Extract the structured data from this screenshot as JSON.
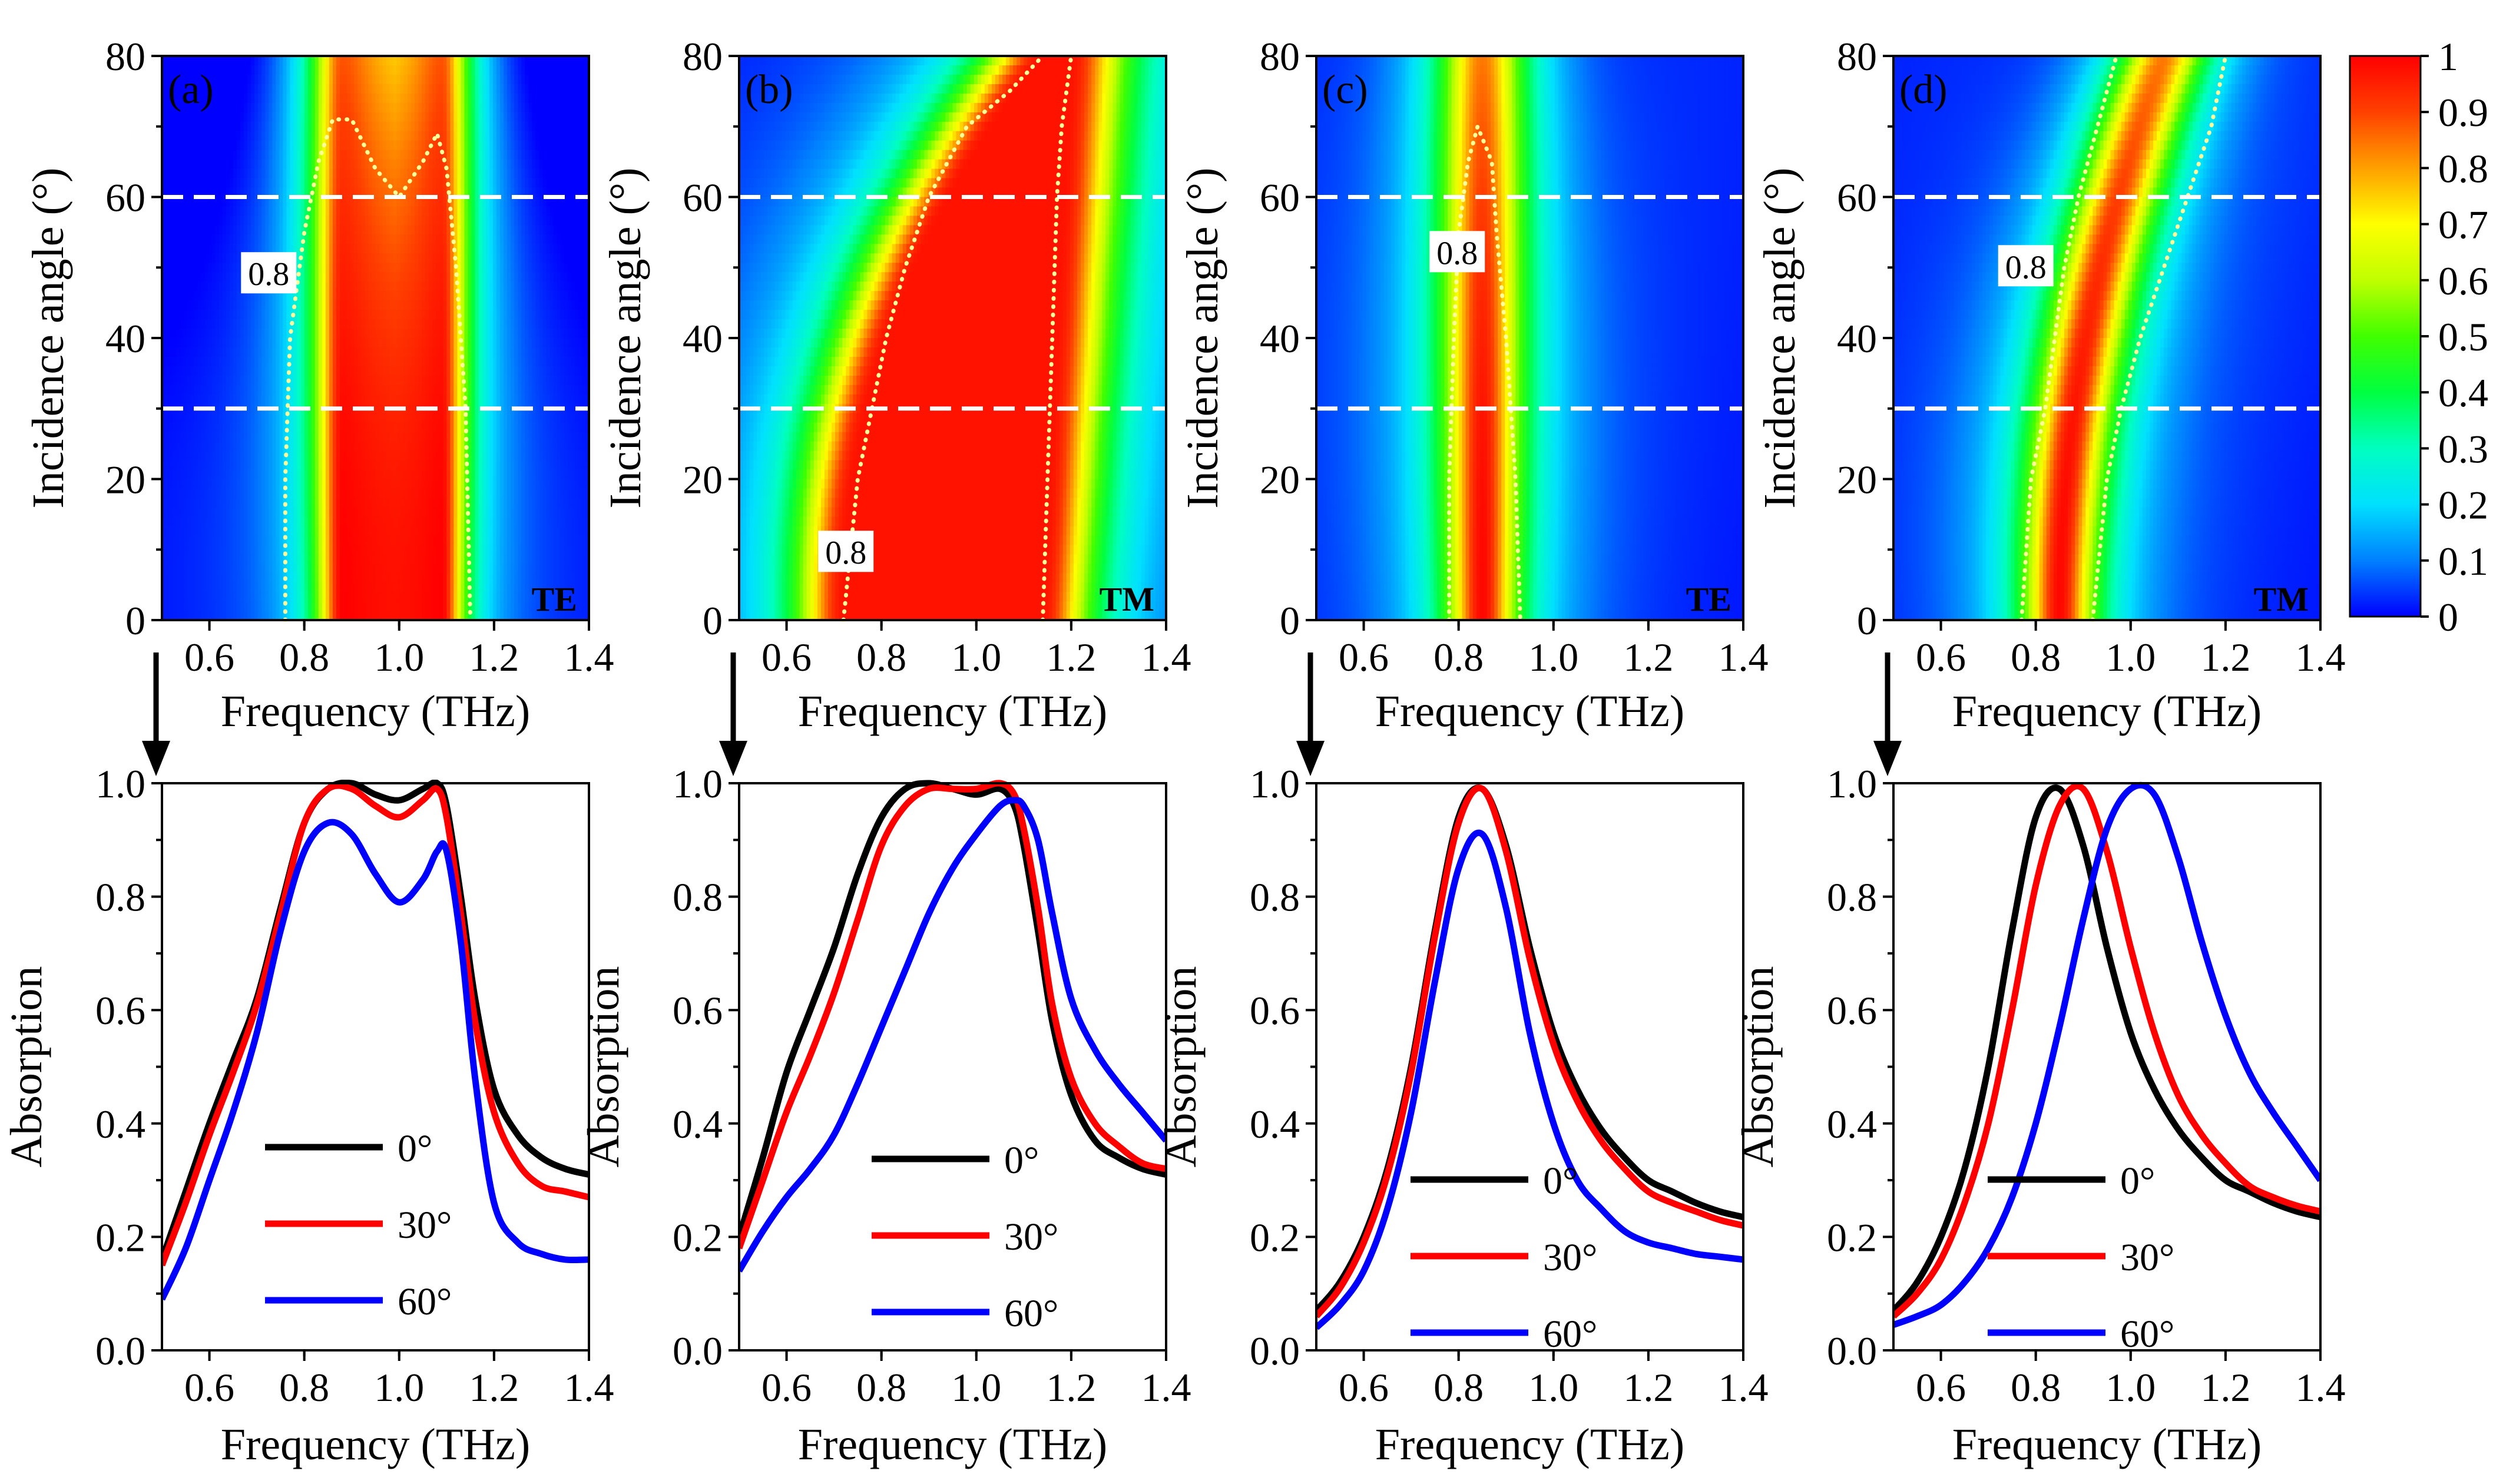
{
  "colorbar": {
    "ticks": [
      "0",
      "0.1",
      "0.2",
      "0.3",
      "0.4",
      "0.5",
      "0.6",
      "0.7",
      "0.8",
      "0.9",
      "1"
    ],
    "stops": [
      "#0000ff",
      "#0080ff",
      "#00e0ff",
      "#00ffc0",
      "#00ff40",
      "#40ff00",
      "#c0ff00",
      "#ffff00",
      "#ffa000",
      "#ff4000",
      "#ff0000"
    ]
  },
  "colors": {
    "0deg": "#000000",
    "30deg": "#ff0000",
    "60deg": "#0000ff",
    "contour": "#ffff9a",
    "guide": "#ffffff"
  },
  "chart_data": [
    {
      "type": "heatmap",
      "panel": "(a)",
      "polarization": "TE",
      "xlabel": "Frequency (THz)",
      "ylabel": "Incidence angle (°)",
      "xlim": [
        0.5,
        1.4
      ],
      "ylim": [
        0,
        80
      ],
      "xticks": [
        "0.6",
        "0.8",
        "1.0",
        "1.2",
        "1.4"
      ],
      "yticks": [
        "0",
        "20",
        "40",
        "60",
        "80"
      ],
      "contour_label": "0.8",
      "guide_angles": [
        30,
        60
      ],
      "contour_left": [
        [
          0,
          0.76
        ],
        [
          20,
          0.76
        ],
        [
          40,
          0.77
        ],
        [
          55,
          0.8
        ],
        [
          65,
          0.83
        ],
        [
          71,
          0.86
        ],
        [
          71,
          0.9
        ],
        [
          64,
          0.95
        ],
        [
          60,
          1.0
        ],
        [
          65,
          1.05
        ],
        [
          69,
          1.08
        ],
        [
          64,
          1.1
        ],
        [
          50,
          1.12
        ],
        [
          30,
          1.14
        ],
        [
          0,
          1.15
        ]
      ],
      "model": "band",
      "peaks": [
        {
          "f0": 0.88,
          "w0": 0.055,
          "shift": 0
        },
        {
          "f0": 1.09,
          "w0": 0.05,
          "shift": 0
        }
      ],
      "dip": 0.15
    },
    {
      "type": "heatmap",
      "panel": "(b)",
      "polarization": "TM",
      "xlabel": "Frequency (THz)",
      "ylabel": "Incidence angle (°)",
      "xlim": [
        0.5,
        1.4
      ],
      "ylim": [
        0,
        80
      ],
      "xticks": [
        "0.6",
        "0.8",
        "1.0",
        "1.2",
        "1.4"
      ],
      "yticks": [
        "0",
        "20",
        "40",
        "60",
        "80"
      ],
      "contour_label": "0.8",
      "guide_angles": [
        30,
        60
      ],
      "contour_left": [
        [
          0,
          0.72
        ],
        [
          20,
          0.75
        ],
        [
          30,
          0.78
        ],
        [
          40,
          0.81
        ],
        [
          50,
          0.85
        ],
        [
          60,
          0.9
        ],
        [
          70,
          0.98
        ],
        [
          75,
          1.07
        ],
        [
          80,
          1.14
        ]
      ],
      "contour_right": [
        [
          0,
          1.14
        ],
        [
          20,
          1.15
        ],
        [
          40,
          1.16
        ],
        [
          60,
          1.17
        ],
        [
          70,
          1.18
        ],
        [
          80,
          1.2
        ]
      ],
      "model": "tm_band"
    },
    {
      "type": "heatmap",
      "panel": "(c)",
      "polarization": "TE",
      "xlabel": "Frequency (THz)",
      "ylabel": "Incidence angle (°)",
      "xlim": [
        0.5,
        1.4
      ],
      "ylim": [
        0,
        80
      ],
      "xticks": [
        "0.6",
        "0.8",
        "1.0",
        "1.2",
        "1.4"
      ],
      "yticks": [
        "0",
        "20",
        "40",
        "60",
        "80"
      ],
      "contour_label": "0.8",
      "guide_angles": [
        30,
        60
      ],
      "contour_left": [
        [
          0,
          0.78
        ],
        [
          20,
          0.78
        ],
        [
          40,
          0.79
        ],
        [
          55,
          0.8
        ],
        [
          65,
          0.82
        ],
        [
          70,
          0.84
        ],
        [
          65,
          0.87
        ],
        [
          55,
          0.88
        ],
        [
          40,
          0.9
        ],
        [
          20,
          0.92
        ],
        [
          0,
          0.93
        ]
      ],
      "model": "peak",
      "f0": 0.85,
      "w0": 0.075,
      "shift": 0
    },
    {
      "type": "heatmap",
      "panel": "(d)",
      "polarization": "TM",
      "xlabel": "Frequency (THz)",
      "ylabel": "Incidence angle (°)",
      "xlim": [
        0.5,
        1.4
      ],
      "ylim": [
        0,
        80
      ],
      "xticks": [
        "0.6",
        "0.8",
        "1.0",
        "1.2",
        "1.4"
      ],
      "yticks": [
        "0",
        "20",
        "40",
        "60",
        "80"
      ],
      "contour_label": "0.8",
      "guide_angles": [
        30,
        60
      ],
      "contour_left": [
        [
          0,
          0.77
        ],
        [
          20,
          0.79
        ],
        [
          30,
          0.82
        ],
        [
          40,
          0.84
        ],
        [
          50,
          0.86
        ],
        [
          60,
          0.89
        ],
        [
          70,
          0.93
        ],
        [
          80,
          0.97
        ]
      ],
      "contour_right": [
        [
          0,
          0.92
        ],
        [
          20,
          0.95
        ],
        [
          30,
          0.98
        ],
        [
          40,
          1.02
        ],
        [
          50,
          1.07
        ],
        [
          60,
          1.12
        ],
        [
          70,
          1.17
        ],
        [
          80,
          1.2
        ]
      ],
      "model": "peak",
      "f0": 0.85,
      "w0": 0.075,
      "shift": 0.22
    },
    {
      "type": "line",
      "panel": "(a) cut",
      "xlabel": "Frequency (THz)",
      "ylabel": "Absorption",
      "xlim": [
        0.5,
        1.4
      ],
      "ylim": [
        0.0,
        1.0
      ],
      "xticks": [
        "0.6",
        "0.8",
        "1.0",
        "1.2",
        "1.4"
      ],
      "yticks": [
        "0.0",
        "0.2",
        "0.4",
        "0.6",
        "0.8",
        "1.0"
      ],
      "x": [
        0.5,
        0.55,
        0.6,
        0.65,
        0.7,
        0.75,
        0.8,
        0.85,
        0.9,
        0.95,
        1.0,
        1.05,
        1.08,
        1.1,
        1.13,
        1.16,
        1.2,
        1.25,
        1.3,
        1.35,
        1.4
      ],
      "series": [
        {
          "name": "0°",
          "color": "#000000",
          "values": [
            0.16,
            0.28,
            0.4,
            0.51,
            0.62,
            0.78,
            0.93,
            0.99,
            1.0,
            0.98,
            0.97,
            0.99,
            1.0,
            0.96,
            0.8,
            0.62,
            0.46,
            0.38,
            0.34,
            0.32,
            0.31
          ]
        },
        {
          "name": "30°",
          "color": "#ff0000",
          "values": [
            0.15,
            0.26,
            0.38,
            0.49,
            0.61,
            0.77,
            0.93,
            0.99,
            0.99,
            0.96,
            0.94,
            0.97,
            0.99,
            0.94,
            0.77,
            0.58,
            0.42,
            0.33,
            0.29,
            0.28,
            0.27
          ]
        },
        {
          "name": "60°",
          "color": "#0000ff",
          "values": [
            0.09,
            0.18,
            0.3,
            0.42,
            0.56,
            0.74,
            0.88,
            0.93,
            0.91,
            0.84,
            0.79,
            0.83,
            0.88,
            0.88,
            0.72,
            0.48,
            0.26,
            0.19,
            0.17,
            0.16,
            0.16
          ]
        }
      ],
      "legend": "lower-center"
    },
    {
      "type": "line",
      "panel": "(b) cut",
      "xlabel": "Frequency (THz)",
      "ylabel": "Absorption",
      "xlim": [
        0.5,
        1.4
      ],
      "ylim": [
        0.0,
        1.0
      ],
      "xticks": [
        "0.6",
        "0.8",
        "1.0",
        "1.2",
        "1.4"
      ],
      "yticks": [
        "0.0",
        "0.2",
        "0.4",
        "0.6",
        "0.8",
        "1.0"
      ],
      "x": [
        0.5,
        0.55,
        0.6,
        0.65,
        0.7,
        0.75,
        0.8,
        0.85,
        0.9,
        0.95,
        1.0,
        1.05,
        1.08,
        1.1,
        1.13,
        1.16,
        1.2,
        1.25,
        1.3,
        1.35,
        1.4
      ],
      "series": [
        {
          "name": "0°",
          "color": "#000000",
          "values": [
            0.2,
            0.34,
            0.49,
            0.6,
            0.71,
            0.84,
            0.94,
            0.99,
            1.0,
            0.99,
            0.98,
            0.99,
            0.96,
            0.89,
            0.74,
            0.58,
            0.45,
            0.37,
            0.34,
            0.32,
            0.31
          ]
        },
        {
          "name": "30°",
          "color": "#ff0000",
          "values": [
            0.18,
            0.3,
            0.42,
            0.52,
            0.63,
            0.76,
            0.89,
            0.96,
            0.99,
            0.99,
            0.99,
            1.0,
            0.98,
            0.92,
            0.78,
            0.61,
            0.48,
            0.4,
            0.36,
            0.33,
            0.32
          ]
        },
        {
          "name": "60°",
          "color": "#0000ff",
          "values": [
            0.14,
            0.21,
            0.27,
            0.32,
            0.38,
            0.47,
            0.57,
            0.67,
            0.77,
            0.85,
            0.91,
            0.96,
            0.97,
            0.96,
            0.9,
            0.77,
            0.62,
            0.53,
            0.47,
            0.42,
            0.37
          ]
        }
      ],
      "legend": "lower-center"
    },
    {
      "type": "line",
      "panel": "(c) cut",
      "xlabel": "Frequency (THz)",
      "ylabel": "Absorption",
      "xlim": [
        0.5,
        1.4
      ],
      "ylim": [
        0.0,
        1.0
      ],
      "xticks": [
        "0.6",
        "0.8",
        "1.0",
        "1.2",
        "1.4"
      ],
      "yticks": [
        "0.0",
        "0.2",
        "0.4",
        "0.6",
        "0.8",
        "1.0"
      ],
      "x": [
        0.5,
        0.55,
        0.6,
        0.65,
        0.7,
        0.75,
        0.8,
        0.85,
        0.9,
        0.95,
        1.0,
        1.05,
        1.1,
        1.15,
        1.2,
        1.25,
        1.3,
        1.35,
        1.4
      ],
      "series": [
        {
          "name": "0°",
          "color": "#000000",
          "values": [
            0.07,
            0.12,
            0.2,
            0.32,
            0.5,
            0.74,
            0.94,
            0.99,
            0.89,
            0.71,
            0.56,
            0.46,
            0.39,
            0.34,
            0.3,
            0.28,
            0.26,
            0.245,
            0.235
          ]
        },
        {
          "name": "30°",
          "color": "#ff0000",
          "values": [
            0.06,
            0.11,
            0.19,
            0.31,
            0.49,
            0.73,
            0.93,
            0.99,
            0.88,
            0.69,
            0.54,
            0.44,
            0.37,
            0.32,
            0.28,
            0.26,
            0.245,
            0.23,
            0.22
          ]
        },
        {
          "name": "60°",
          "color": "#0000ff",
          "values": [
            0.04,
            0.08,
            0.14,
            0.25,
            0.42,
            0.65,
            0.85,
            0.91,
            0.78,
            0.56,
            0.4,
            0.3,
            0.25,
            0.21,
            0.19,
            0.18,
            0.17,
            0.165,
            0.16
          ]
        }
      ],
      "legend": "lower-center"
    },
    {
      "type": "line",
      "panel": "(d) cut",
      "xlabel": "Frequency (THz)",
      "ylabel": "Absorption",
      "xlim": [
        0.5,
        1.4
      ],
      "ylim": [
        0.0,
        1.0
      ],
      "xticks": [
        "0.6",
        "0.8",
        "1.0",
        "1.2",
        "1.4"
      ],
      "yticks": [
        "0.0",
        "0.2",
        "0.4",
        "0.6",
        "0.8",
        "1.0"
      ],
      "x": [
        0.5,
        0.55,
        0.6,
        0.65,
        0.7,
        0.75,
        0.8,
        0.85,
        0.9,
        0.95,
        1.0,
        1.05,
        1.1,
        1.15,
        1.2,
        1.25,
        1.3,
        1.35,
        1.4
      ],
      "series": [
        {
          "name": "0°",
          "color": "#000000",
          "values": [
            0.07,
            0.12,
            0.2,
            0.32,
            0.5,
            0.74,
            0.94,
            0.99,
            0.89,
            0.71,
            0.56,
            0.46,
            0.39,
            0.34,
            0.3,
            0.28,
            0.26,
            0.245,
            0.235
          ]
        },
        {
          "name": "30°",
          "color": "#ff0000",
          "values": [
            0.06,
            0.1,
            0.16,
            0.26,
            0.4,
            0.6,
            0.82,
            0.96,
            0.99,
            0.88,
            0.71,
            0.56,
            0.45,
            0.38,
            0.33,
            0.29,
            0.27,
            0.255,
            0.245
          ]
        },
        {
          "name": "60°",
          "color": "#0000ff",
          "values": [
            0.045,
            0.06,
            0.08,
            0.12,
            0.18,
            0.27,
            0.4,
            0.57,
            0.76,
            0.92,
            0.99,
            0.98,
            0.87,
            0.72,
            0.59,
            0.49,
            0.42,
            0.36,
            0.3
          ]
        }
      ],
      "legend": "lower-center"
    }
  ]
}
